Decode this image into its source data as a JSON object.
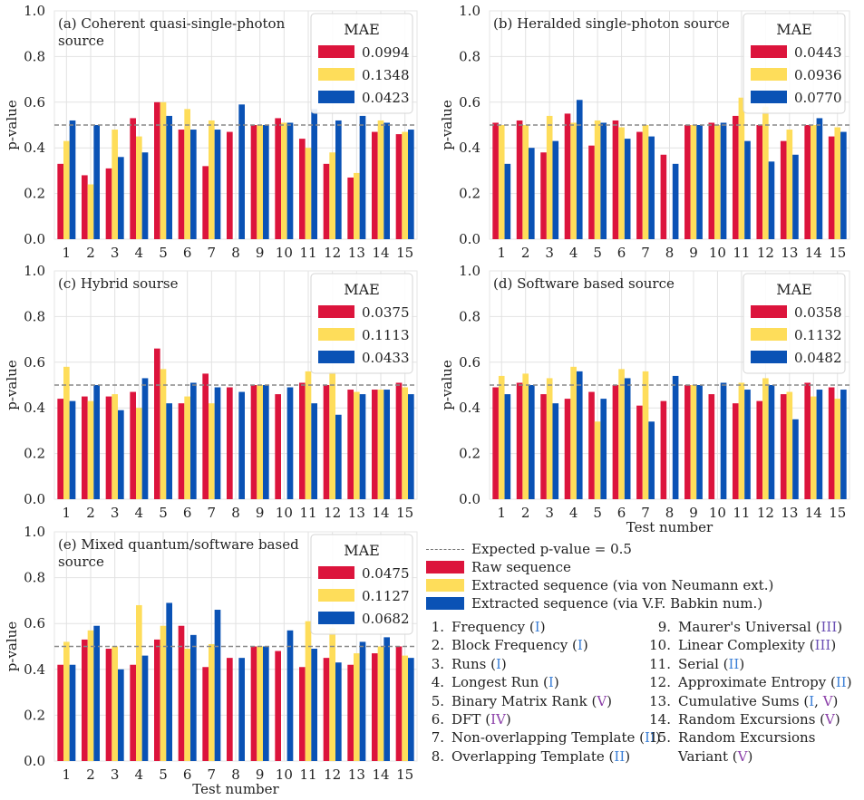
{
  "colors": {
    "raw": "#dc143c",
    "neumann": "#fedd5a",
    "babkin": "#0a52b5",
    "grid": "#e2e2e2",
    "expected": "#888888",
    "class_blue": "#3b7fd6",
    "class_purple": "#8b3fa8"
  },
  "chart_data": [
    {
      "type": "bar",
      "title": "(a) Coherent quasi-single-photon source",
      "title_lines": [
        "(a) Coherent quasi-single-photon",
        "source"
      ],
      "xlabel": "",
      "ylabel": "p-value",
      "ylim": [
        0,
        1.0
      ],
      "categories": [
        "1",
        "2",
        "3",
        "4",
        "5",
        "6",
        "7",
        "8",
        "9",
        "10",
        "11",
        "12",
        "13",
        "14",
        "15"
      ],
      "series": [
        {
          "name": "Raw sequence",
          "values": [
            0.33,
            0.28,
            0.31,
            0.53,
            0.6,
            0.48,
            0.32,
            0.47,
            0.5,
            0.53,
            0.44,
            0.33,
            0.27,
            0.47,
            0.46
          ]
        },
        {
          "name": "Extracted sequence (via von Neumann ext.)",
          "values": [
            0.43,
            0.24,
            0.48,
            0.45,
            0.6,
            0.57,
            0.52,
            0.0,
            0.5,
            0.51,
            0.4,
            0.38,
            0.29,
            0.52,
            0.47
          ]
        },
        {
          "name": "Extracted sequence (via V.F. Babkin num.)",
          "values": [
            0.52,
            0.5,
            0.36,
            0.38,
            0.54,
            0.48,
            0.48,
            0.59,
            0.5,
            0.51,
            0.57,
            0.52,
            0.54,
            0.51,
            0.48
          ]
        }
      ],
      "legend": {
        "title": "MAE",
        "values": [
          "0.0994",
          "0.1348",
          "0.0423"
        ],
        "position": "top-right"
      },
      "yticks": [
        "0.0",
        "0.2",
        "0.4",
        "0.6",
        "0.8",
        "1.0"
      ]
    },
    {
      "type": "bar",
      "title": "(b) Heralded single-photon source",
      "title_lines": [
        "(b) Heralded single-photon source"
      ],
      "xlabel": "",
      "ylabel": "p-value",
      "ylim": [
        0,
        1.0
      ],
      "categories": [
        "1",
        "2",
        "3",
        "4",
        "5",
        "6",
        "7",
        "8",
        "9",
        "10",
        "11",
        "12",
        "13",
        "14",
        "15"
      ],
      "series": [
        {
          "name": "Raw sequence",
          "values": [
            0.51,
            0.52,
            0.38,
            0.55,
            0.41,
            0.52,
            0.47,
            0.37,
            0.5,
            0.51,
            0.54,
            0.5,
            0.43,
            0.5,
            0.45
          ]
        },
        {
          "name": "Extracted sequence (via von Neumann ext.)",
          "values": [
            0.5,
            0.5,
            0.54,
            0.51,
            0.52,
            0.49,
            0.5,
            0.0,
            0.5,
            0.5,
            0.62,
            0.58,
            0.48,
            0.5,
            0.49
          ]
        },
        {
          "name": "Extracted sequence (via V.F. Babkin num.)",
          "values": [
            0.33,
            0.4,
            0.43,
            0.61,
            0.51,
            0.44,
            0.45,
            0.33,
            0.5,
            0.51,
            0.43,
            0.34,
            0.37,
            0.53,
            0.47
          ]
        }
      ],
      "legend": {
        "title": "MAE",
        "values": [
          "0.0443",
          "0.0936",
          "0.0770"
        ],
        "position": "top-right"
      },
      "yticks": [
        "0.0",
        "0.2",
        "0.4",
        "0.6",
        "0.8",
        "1.0"
      ]
    },
    {
      "type": "bar",
      "title": "(c) Hybrid sourse",
      "title_lines": [
        "(c) Hybrid sourse"
      ],
      "xlabel": "",
      "ylabel": "p-value",
      "ylim": [
        0,
        1.0
      ],
      "categories": [
        "1",
        "2",
        "3",
        "4",
        "5",
        "6",
        "7",
        "8",
        "9",
        "10",
        "11",
        "12",
        "13",
        "14",
        "15"
      ],
      "series": [
        {
          "name": "Raw sequence",
          "values": [
            0.44,
            0.45,
            0.45,
            0.47,
            0.66,
            0.42,
            0.55,
            0.49,
            0.5,
            0.46,
            0.51,
            0.5,
            0.48,
            0.48,
            0.51
          ]
        },
        {
          "name": "Extracted sequence (via von Neumann ext.)",
          "values": [
            0.58,
            0.43,
            0.46,
            0.4,
            0.57,
            0.45,
            0.42,
            0.0,
            0.5,
            0.0,
            0.56,
            0.56,
            0.47,
            0.48,
            0.49
          ]
        },
        {
          "name": "Extracted sequence (via V.F. Babkin num.)",
          "values": [
            0.43,
            0.5,
            0.39,
            0.53,
            0.42,
            0.51,
            0.49,
            0.47,
            0.5,
            0.49,
            0.42,
            0.37,
            0.46,
            0.48,
            0.46
          ]
        }
      ],
      "legend": {
        "title": "MAE",
        "values": [
          "0.0375",
          "0.1113",
          "0.0433"
        ],
        "position": "top-right"
      },
      "yticks": [
        "0.0",
        "0.2",
        "0.4",
        "0.6",
        "0.8",
        "1.0"
      ]
    },
    {
      "type": "bar",
      "title": "(d) Software based source",
      "title_lines": [
        "(d) Software based source"
      ],
      "xlabel": "Test number",
      "ylabel": "p-value",
      "ylim": [
        0,
        1.0
      ],
      "categories": [
        "1",
        "2",
        "3",
        "4",
        "5",
        "6",
        "7",
        "8",
        "9",
        "10",
        "11",
        "12",
        "13",
        "14",
        "15"
      ],
      "series": [
        {
          "name": "Raw sequence",
          "values": [
            0.49,
            0.51,
            0.46,
            0.44,
            0.47,
            0.5,
            0.41,
            0.43,
            0.5,
            0.46,
            0.42,
            0.43,
            0.46,
            0.51,
            0.49
          ]
        },
        {
          "name": "Extracted sequence (via von Neumann ext.)",
          "values": [
            0.54,
            0.55,
            0.53,
            0.58,
            0.34,
            0.57,
            0.56,
            0.0,
            0.5,
            0.0,
            0.51,
            0.53,
            0.47,
            0.45,
            0.44
          ]
        },
        {
          "name": "Extracted sequence (via V.F. Babkin num.)",
          "values": [
            0.46,
            0.5,
            0.42,
            0.56,
            0.44,
            0.53,
            0.34,
            0.54,
            0.5,
            0.51,
            0.48,
            0.5,
            0.35,
            0.48,
            0.48
          ]
        }
      ],
      "legend": {
        "title": "MAE",
        "values": [
          "0.0358",
          "0.1132",
          "0.0482"
        ],
        "position": "top-right"
      },
      "yticks": [
        "0.0",
        "0.2",
        "0.4",
        "0.6",
        "0.8",
        "1.0"
      ]
    },
    {
      "type": "bar",
      "title": "(e) Mixed quantum/software based source",
      "title_lines": [
        "(e) Mixed quantum/software based",
        "source"
      ],
      "xlabel": "Test number",
      "ylabel": "p-value",
      "ylim": [
        0,
        1.0
      ],
      "categories": [
        "1",
        "2",
        "3",
        "4",
        "5",
        "6",
        "7",
        "8",
        "9",
        "10",
        "11",
        "12",
        "13",
        "14",
        "15"
      ],
      "series": [
        {
          "name": "Raw sequence",
          "values": [
            0.42,
            0.53,
            0.49,
            0.42,
            0.53,
            0.59,
            0.41,
            0.45,
            0.5,
            0.48,
            0.41,
            0.45,
            0.42,
            0.47,
            0.5
          ]
        },
        {
          "name": "Extracted sequence (via von Neumann ext.)",
          "values": [
            0.52,
            0.57,
            0.5,
            0.68,
            0.59,
            0.49,
            0.51,
            0.0,
            0.5,
            0.0,
            0.61,
            0.58,
            0.47,
            0.5,
            0.46
          ]
        },
        {
          "name": "Extracted sequence (via V.F. Babkin num.)",
          "values": [
            0.42,
            0.59,
            0.4,
            0.46,
            0.69,
            0.55,
            0.66,
            0.45,
            0.5,
            0.57,
            0.49,
            0.43,
            0.52,
            0.54,
            0.45
          ]
        }
      ],
      "legend": {
        "title": "MAE",
        "values": [
          "0.0475",
          "0.1127",
          "0.0682"
        ],
        "position": "top-right"
      },
      "yticks": [
        "0.0",
        "0.2",
        "0.4",
        "0.6",
        "0.8",
        "1.0"
      ]
    }
  ],
  "expected_value": 0.5,
  "shared_legend": {
    "expected_label": "Expected p-value = 0.5",
    "raw_label": "Raw sequence",
    "neumann_label": "Extracted sequence (via von Neumann ext.)",
    "babkin_label": "Extracted sequence (via V.F. Babkin num.)"
  },
  "tests_left": [
    {
      "num": "1.",
      "name": "Frequency",
      "classes": [
        {
          "label": "I",
          "color": "#3b7fd6"
        }
      ]
    },
    {
      "num": "2.",
      "name": "Block Frequency",
      "classes": [
        {
          "label": "I",
          "color": "#3b7fd6"
        }
      ]
    },
    {
      "num": "3.",
      "name": "Runs",
      "classes": [
        {
          "label": "I",
          "color": "#3b7fd6"
        }
      ]
    },
    {
      "num": "4.",
      "name": "Longest Run",
      "classes": [
        {
          "label": "I",
          "color": "#3b7fd6"
        }
      ]
    },
    {
      "num": "5.",
      "name": "Binary Matrix Rank",
      "classes": [
        {
          "label": "V",
          "color": "#8b3fa8"
        }
      ]
    },
    {
      "num": "6.",
      "name": "DFT",
      "classes": [
        {
          "label": "IV",
          "color": "#8b3fa8"
        }
      ]
    },
    {
      "num": "7.",
      "name": "Non-overlapping Template",
      "classes": [
        {
          "label": "II",
          "color": "#3b7fd6"
        }
      ]
    },
    {
      "num": "8.",
      "name": "Overlapping Template",
      "classes": [
        {
          "label": "II",
          "color": "#3b7fd6"
        }
      ]
    }
  ],
  "tests_right": [
    {
      "num": "9.",
      "name": "Maurer's Universal",
      "classes": [
        {
          "label": "III",
          "color": "#6a4fb3"
        }
      ]
    },
    {
      "num": "10.",
      "name": "Linear Complexity",
      "classes": [
        {
          "label": "III",
          "color": "#6a4fb3"
        }
      ]
    },
    {
      "num": "11.",
      "name": "Serial",
      "classes": [
        {
          "label": "II",
          "color": "#3b7fd6"
        }
      ]
    },
    {
      "num": "12.",
      "name": "Approximate Entropy",
      "classes": [
        {
          "label": "II",
          "color": "#3b7fd6"
        }
      ]
    },
    {
      "num": "13.",
      "name": "Cumulative Sums",
      "classes": [
        {
          "label": "I",
          "color": "#3b7fd6"
        },
        {
          "label": "V",
          "color": "#8b3fa8"
        }
      ]
    },
    {
      "num": "14.",
      "name": "Random Excursions",
      "classes": [
        {
          "label": "V",
          "color": "#8b3fa8"
        }
      ]
    },
    {
      "num": "15.",
      "name": "Random Excursions Variant",
      "name_lines": [
        "Random Excursions",
        "Variant"
      ],
      "classes": [
        {
          "label": "V",
          "color": "#8b3fa8"
        }
      ]
    }
  ]
}
